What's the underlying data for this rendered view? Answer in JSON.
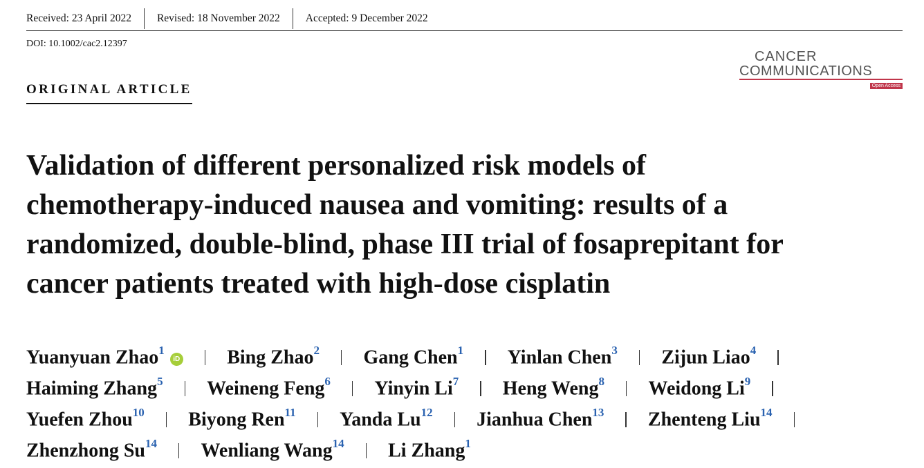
{
  "header": {
    "received": "Received: 23 April 2022",
    "revised": "Revised: 18 November 2022",
    "accepted": "Accepted: 9 December 2022",
    "doi": "DOI: 10.1002/cac2.12397"
  },
  "journal": {
    "name_line1": "CANCER",
    "name_line2": "COMMUNICATIONS",
    "badge": "Open Access"
  },
  "article_type": "ORIGINAL ARTICLE",
  "title_lines": [
    "Validation of different personalized risk models of",
    "chemotherapy-induced nausea and vomiting: results of a",
    "randomized, double-blind, phase III trial of fosaprepitant for",
    "cancer patients treated with high-dose cisplatin"
  ],
  "author_rows": [
    [
      {
        "name": "Yuanyuan Zhao",
        "affiliation": "1",
        "orcid": "iD"
      },
      {
        "name": "Bing Zhao",
        "affiliation": "2"
      },
      {
        "name": "Gang Chen",
        "affiliation": "1"
      },
      {
        "name": "Yinlan Chen",
        "affiliation": "3"
      },
      {
        "name": "Zijun Liao",
        "affiliation": "4"
      }
    ],
    [
      {
        "name": "Haiming Zhang",
        "affiliation": "5"
      },
      {
        "name": "Weineng Feng",
        "affiliation": "6"
      },
      {
        "name": "Yinyin Li",
        "affiliation": "7"
      },
      {
        "name": "Heng Weng",
        "affiliation": "8"
      },
      {
        "name": "Weidong Li",
        "affiliation": "9"
      }
    ],
    [
      {
        "name": "Yuefen Zhou",
        "affiliation": "10"
      },
      {
        "name": "Biyong Ren",
        "affiliation": "11"
      },
      {
        "name": "Yanda Lu",
        "affiliation": "12"
      },
      {
        "name": "Jianhua Chen",
        "affiliation": "13"
      },
      {
        "name": "Zhenteng Liu",
        "affiliation": "14"
      }
    ],
    [
      {
        "name": "Zhenzhong Su",
        "affiliation": "14"
      },
      {
        "name": "Wenliang Wang",
        "affiliation": "14"
      },
      {
        "name": "Li Zhang",
        "affiliation": "1"
      }
    ]
  ]
}
